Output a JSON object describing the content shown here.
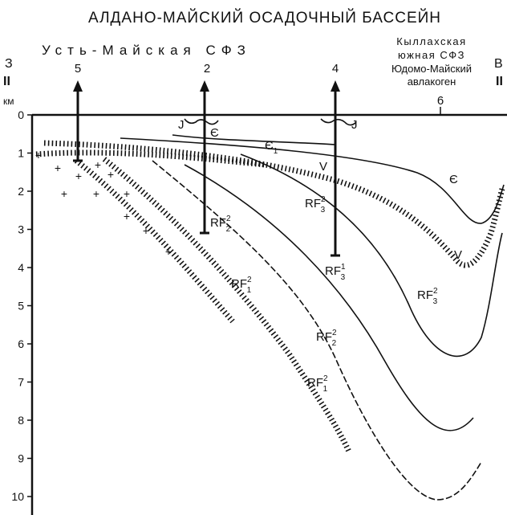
{
  "title": "АЛДАНО-МАЙСКИЙ ОСАДОЧНЫЙ БАССЕЙН",
  "zone_left": "Усть-Майская СФЗ",
  "zone_right": [
    "Кыллахская",
    "южная СФЗ",
    "Юдомо-Майский",
    "авлакоген"
  ],
  "side_left": {
    "letter": "З",
    "section": "II"
  },
  "side_right": {
    "letter": "В",
    "section": "II"
  },
  "depth_unit": "км",
  "depth_labels": [
    "0",
    "1",
    "2",
    "3",
    "4",
    "5",
    "6",
    "7",
    "8",
    "9",
    "10"
  ],
  "wells": [
    "5",
    "2",
    "4",
    "6"
  ],
  "units": [
    {
      "base": "J"
    },
    {
      "base": "Є"
    },
    {
      "base": "Є",
      "sub": "1"
    },
    {
      "base": "V"
    },
    {
      "base": "RF",
      "sub": "3",
      "sup": "2"
    },
    {
      "base": "RF",
      "sub": "2",
      "sup": "2"
    },
    {
      "base": "RF",
      "sub": "1",
      "sup": "2"
    },
    {
      "base": "RF",
      "sub": "3",
      "sup": "1"
    },
    {
      "base": "RF",
      "sub": "3",
      "sup": "2"
    },
    {
      "base": "RF",
      "sub": "2",
      "sup": "2"
    },
    {
      "base": "RF",
      "sub": "1",
      "sup": "2"
    },
    {
      "base": "V"
    },
    {
      "base": "Є"
    },
    {
      "base": "J"
    }
  ]
}
